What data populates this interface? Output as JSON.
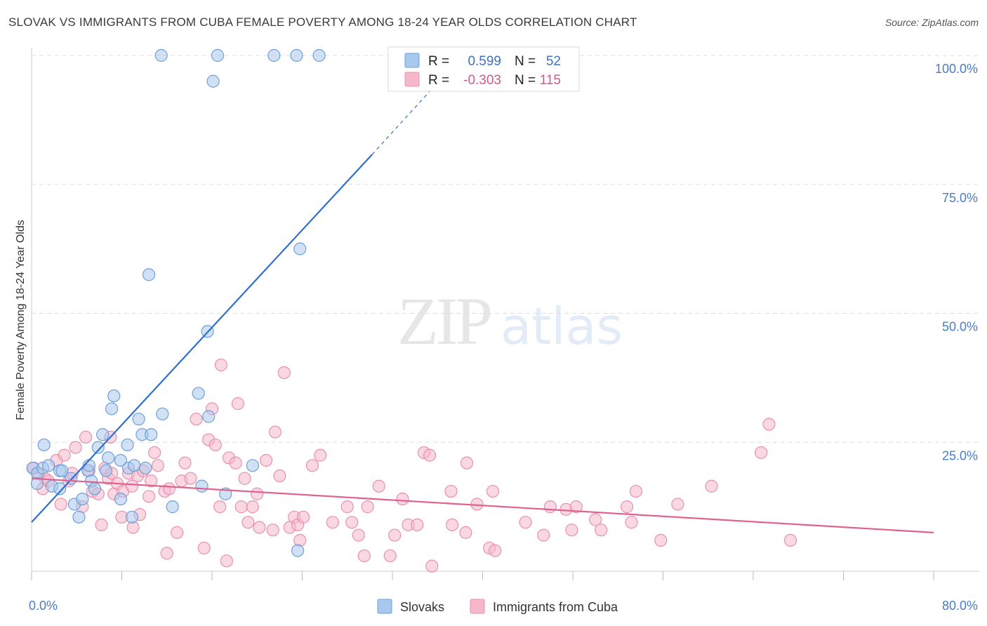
{
  "title": "SLOVAK VS IMMIGRANTS FROM CUBA FEMALE POVERTY AMONG 18-24 YEAR OLDS CORRELATION CHART",
  "source": "Source: ZipAtlas.com",
  "watermark": {
    "zip": "ZIP",
    "atlas": "atlas"
  },
  "colors": {
    "blue_fill": "#a9c8ee",
    "blue_stroke": "#6f9fd8",
    "blue_line": "#2f6fd0",
    "pink_fill": "#f5b8cb",
    "pink_stroke": "#e890ae",
    "pink_line": "#e0608f",
    "grid": "#dddddd",
    "tick_text": "#4a7cc7"
  },
  "legend": {
    "r_label": "R =",
    "n_label": "N =",
    "series": [
      {
        "r": "0.599",
        "n": "52"
      },
      {
        "r": "-0.303",
        "n": "115"
      }
    ]
  },
  "bottom_legend": [
    "Slovaks",
    "Immigrants from Cuba"
  ],
  "chart_data": {
    "type": "scatter",
    "title": "SLOVAK VS IMMIGRANTS FROM CUBA FEMALE POVERTY AMONG 18-24 YEAR OLDS CORRELATION CHART",
    "xlabel": "",
    "ylabel": "Female Poverty Among 18-24 Year Olds",
    "xlim": [
      0,
      80
    ],
    "ylim": [
      0,
      100
    ],
    "x_tick_labels": [
      "0.0%",
      "80.0%"
    ],
    "y_ticks": [
      25,
      50,
      75,
      100
    ],
    "y_tick_labels": [
      "25.0%",
      "50.0%",
      "75.0%",
      "100.0%"
    ],
    "grid": true,
    "legend_position": "top-center",
    "series": [
      {
        "name": "Slovaks",
        "r": 0.599,
        "n": 52,
        "trend": {
          "x": [
            0,
            30.2
          ],
          "y": [
            9.5,
            80.8
          ],
          "dashed_to": {
            "x": 35.5,
            "y": 93.5
          }
        },
        "points": [
          [
            0.1,
            20
          ],
          [
            0.5,
            19
          ],
          [
            0.5,
            17
          ],
          [
            1,
            20
          ],
          [
            1.1,
            24.5
          ],
          [
            1.5,
            20.5
          ],
          [
            1.8,
            16.5
          ],
          [
            2.5,
            19.5
          ],
          [
            2.5,
            16
          ],
          [
            2.7,
            19.5
          ],
          [
            3.5,
            18
          ],
          [
            3.8,
            13
          ],
          [
            4.2,
            10.5
          ],
          [
            4.5,
            14
          ],
          [
            5,
            19.5
          ],
          [
            5.1,
            20.5
          ],
          [
            5.3,
            17.5
          ],
          [
            5.6,
            16
          ],
          [
            5.9,
            24
          ],
          [
            6.3,
            26.5
          ],
          [
            6.6,
            19.5
          ],
          [
            6.8,
            22
          ],
          [
            7.1,
            31.5
          ],
          [
            7.3,
            34
          ],
          [
            7.9,
            14
          ],
          [
            7.9,
            21.5
          ],
          [
            8.5,
            24.5
          ],
          [
            8.6,
            20
          ],
          [
            8.9,
            10.5
          ],
          [
            9.1,
            20.5
          ],
          [
            9.5,
            29.5
          ],
          [
            9.8,
            26.5
          ],
          [
            10.1,
            20
          ],
          [
            10.4,
            57.5
          ],
          [
            10.6,
            26.5
          ],
          [
            11.5,
            100
          ],
          [
            11.6,
            30.5
          ],
          [
            12.5,
            12.5
          ],
          [
            14.8,
            34.5
          ],
          [
            15.1,
            16.5
          ],
          [
            15.6,
            46.5
          ],
          [
            15.7,
            30
          ],
          [
            16.1,
            95
          ],
          [
            16.5,
            100
          ],
          [
            17.2,
            15
          ],
          [
            19.6,
            20.5
          ],
          [
            21.5,
            100
          ],
          [
            23.5,
            100
          ],
          [
            23.6,
            4
          ],
          [
            23.8,
            62.5
          ],
          [
            25.5,
            100
          ]
        ]
      },
      {
        "name": "Immigrants from Cuba",
        "r": -0.303,
        "n": 115,
        "trend": {
          "x": [
            0,
            80
          ],
          "y": [
            18,
            7.5
          ]
        },
        "points": [
          [
            0.2,
            20
          ],
          [
            0.6,
            19
          ],
          [
            1,
            16
          ],
          [
            1.2,
            18
          ],
          [
            1.5,
            17.5
          ],
          [
            2.2,
            21.5
          ],
          [
            2.6,
            13
          ],
          [
            2.9,
            22.5
          ],
          [
            3.3,
            17.5
          ],
          [
            3.6,
            19
          ],
          [
            3.9,
            24
          ],
          [
            4.5,
            12.5
          ],
          [
            4.8,
            26
          ],
          [
            5.1,
            19.5
          ],
          [
            5.4,
            15.5
          ],
          [
            5.9,
            15
          ],
          [
            6.2,
            9
          ],
          [
            6.5,
            20
          ],
          [
            6.8,
            18
          ],
          [
            7,
            26
          ],
          [
            7.1,
            19
          ],
          [
            7.3,
            15
          ],
          [
            7.6,
            17
          ],
          [
            8,
            10.5
          ],
          [
            8.1,
            15.5
          ],
          [
            8.6,
            19
          ],
          [
            8.9,
            16.5
          ],
          [
            9,
            8.5
          ],
          [
            9.4,
            18.5
          ],
          [
            9.6,
            11
          ],
          [
            9.9,
            19.5
          ],
          [
            10.4,
            14.5
          ],
          [
            10.6,
            17.5
          ],
          [
            10.9,
            23
          ],
          [
            11.2,
            20.5
          ],
          [
            11.8,
            15.5
          ],
          [
            12,
            3.5
          ],
          [
            12.2,
            16
          ],
          [
            12.9,
            7.5
          ],
          [
            13.3,
            17.5
          ],
          [
            13.6,
            21
          ],
          [
            14.1,
            18
          ],
          [
            14.6,
            29.5
          ],
          [
            15.3,
            4.5
          ],
          [
            15.7,
            25.5
          ],
          [
            16,
            31.5
          ],
          [
            16.3,
            24.5
          ],
          [
            16.7,
            12.5
          ],
          [
            16.8,
            40
          ],
          [
            17.3,
            2
          ],
          [
            17.5,
            22
          ],
          [
            18.1,
            21
          ],
          [
            18.3,
            32.5
          ],
          [
            18.6,
            12.5
          ],
          [
            18.9,
            18
          ],
          [
            19.2,
            9.5
          ],
          [
            19.6,
            12.5
          ],
          [
            20,
            15
          ],
          [
            20.2,
            8.5
          ],
          [
            20.8,
            21.5
          ],
          [
            21.4,
            8
          ],
          [
            21.6,
            27
          ],
          [
            22,
            18.5
          ],
          [
            22.4,
            38.5
          ],
          [
            22.9,
            8.5
          ],
          [
            23.3,
            10.5
          ],
          [
            23.6,
            9
          ],
          [
            23.8,
            6
          ],
          [
            24.1,
            10.5
          ],
          [
            24.9,
            20.5
          ],
          [
            25.6,
            22.5
          ],
          [
            26.7,
            9.5
          ],
          [
            28,
            12.5
          ],
          [
            28.4,
            9.5
          ],
          [
            29,
            7
          ],
          [
            29.5,
            3
          ],
          [
            29.8,
            12.5
          ],
          [
            30.8,
            16.5
          ],
          [
            31.8,
            3
          ],
          [
            32.2,
            7
          ],
          [
            32.9,
            14
          ],
          [
            33.4,
            9
          ],
          [
            34.2,
            9
          ],
          [
            34.8,
            23
          ],
          [
            35.3,
            22.5
          ],
          [
            35.5,
            1
          ],
          [
            37.2,
            15.5
          ],
          [
            37.3,
            9
          ],
          [
            38.5,
            7.5
          ],
          [
            38.6,
            21
          ],
          [
            39.5,
            13
          ],
          [
            40.6,
            4.5
          ],
          [
            40.9,
            15.5
          ],
          [
            41.1,
            4
          ],
          [
            43.8,
            9.5
          ],
          [
            45.4,
            7
          ],
          [
            46,
            12.5
          ],
          [
            47.4,
            12
          ],
          [
            47.9,
            8
          ],
          [
            48.3,
            12.5
          ],
          [
            50,
            10
          ],
          [
            50.5,
            8
          ],
          [
            52.8,
            12.5
          ],
          [
            53.2,
            9.5
          ],
          [
            53.6,
            15.5
          ],
          [
            55.8,
            6
          ],
          [
            57.3,
            13
          ],
          [
            60.3,
            16.5
          ],
          [
            64.7,
            23
          ],
          [
            65.4,
            28.5
          ],
          [
            67.3,
            6
          ]
        ]
      }
    ]
  }
}
